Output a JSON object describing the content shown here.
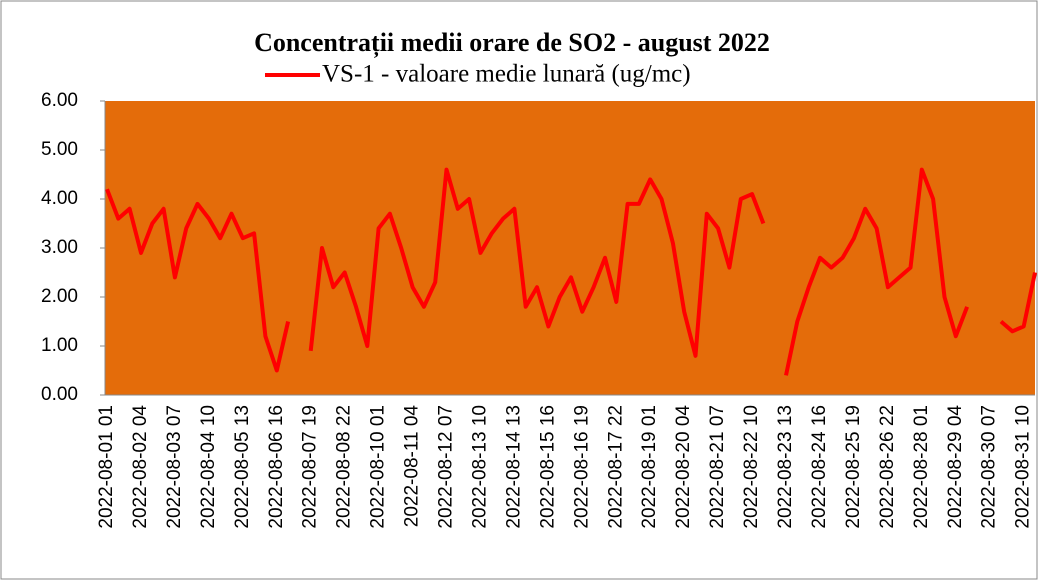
{
  "chart_data": {
    "type": "line",
    "title": "Concentrații medii orare de SO2 - august 2022",
    "categories": [
      "2022-08-01 01",
      null,
      null,
      "2022-08-02 04",
      null,
      null,
      "2022-08-03 07",
      null,
      null,
      "2022-08-04 10",
      null,
      null,
      "2022-08-05 13",
      null,
      null,
      "2022-08-06 16",
      null,
      null,
      "2022-08-07 19",
      null,
      null,
      "2022-08-08 22",
      null,
      null,
      "2022-08-10 01",
      null,
      null,
      "2022-08-11 04",
      null,
      null,
      "2022-08-12 07",
      null,
      null,
      "2022-08-13 10",
      null,
      null,
      "2022-08-14 13",
      null,
      null,
      "2022-08-15 16",
      null,
      null,
      "2022-08-16 19",
      null,
      null,
      "2022-08-17 22",
      null,
      null,
      "2022-08-19 01",
      null,
      null,
      "2022-08-20 04",
      null,
      null,
      "2022-08-21 07",
      null,
      null,
      "2022-08-22 10",
      null,
      null,
      "2022-08-23 13",
      null,
      null,
      "2022-08-24 16",
      null,
      null,
      "2022-08-25 19",
      null,
      null,
      "2022-08-26 22",
      null,
      null,
      "2022-08-28 01",
      null,
      null,
      "2022-08-29 04",
      null,
      null,
      "2022-08-30 07",
      null,
      null,
      "2022-08-31 10",
      null
    ],
    "series": [
      {
        "name": "VS-1 - valoare medie lunară (ug/mc)",
        "color": "#ff0000",
        "values": [
          4.2,
          3.6,
          3.8,
          2.9,
          3.5,
          3.8,
          2.4,
          3.4,
          3.9,
          3.6,
          3.2,
          3.7,
          3.2,
          3.3,
          1.2,
          0.5,
          1.5,
          null,
          0.9,
          3.0,
          2.2,
          2.5,
          1.8,
          1.0,
          3.4,
          3.7,
          3.0,
          2.2,
          1.8,
          2.3,
          4.6,
          3.8,
          4.0,
          2.9,
          3.3,
          3.6,
          3.8,
          1.8,
          2.2,
          1.4,
          2.0,
          2.4,
          1.7,
          2.2,
          2.8,
          1.9,
          3.9,
          3.9,
          4.4,
          4.0,
          3.1,
          1.7,
          0.8,
          3.7,
          3.4,
          2.6,
          4.0,
          4.1,
          3.5,
          null,
          0.4,
          1.5,
          2.2,
          2.8,
          2.6,
          2.8,
          3.2,
          3.8,
          3.4,
          2.2,
          2.4,
          2.6,
          4.6,
          4.0,
          2.0,
          1.2,
          1.8,
          null,
          null,
          1.5,
          1.3,
          1.4,
          2.5
        ]
      }
    ],
    "ylim": [
      0,
      6
    ],
    "yticks": [
      {
        "value": 0,
        "label": "0.00"
      },
      {
        "value": 1,
        "label": "1.00"
      },
      {
        "value": 2,
        "label": "2.00"
      },
      {
        "value": 3,
        "label": "3.00"
      },
      {
        "value": 4,
        "label": "4.00"
      },
      {
        "value": 5,
        "label": "5.00"
      },
      {
        "value": 6,
        "label": "6.00"
      }
    ],
    "background": "#e46c0a",
    "legend": "top"
  }
}
